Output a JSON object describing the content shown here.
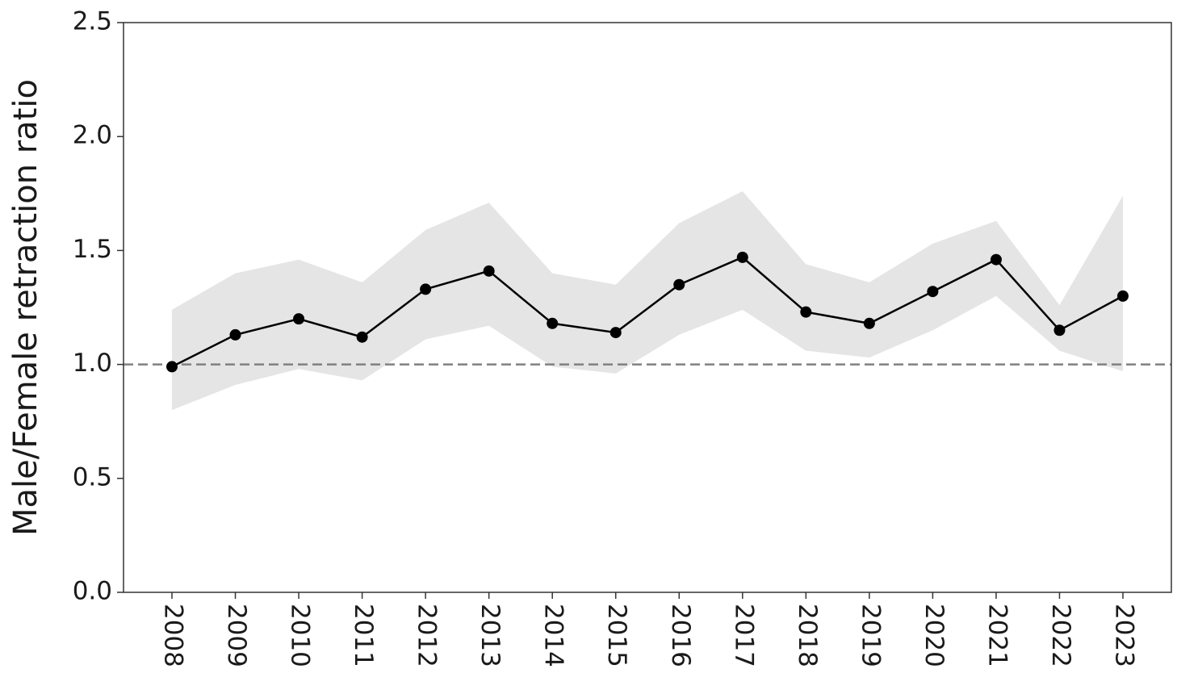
{
  "chart_data": {
    "type": "line",
    "ylabel": "Male/Female retraction ratio",
    "categories": [
      "2008",
      "2009",
      "2010",
      "2011",
      "2012",
      "2013",
      "2014",
      "2015",
      "2016",
      "2017",
      "2018",
      "2019",
      "2020",
      "2021",
      "2022",
      "2023"
    ],
    "series": [
      {
        "color": "#000000",
        "band_color": "#e5e5e5",
        "values": [
          0.99,
          1.13,
          1.2,
          1.12,
          1.33,
          1.41,
          1.18,
          1.14,
          1.35,
          1.47,
          1.23,
          1.18,
          1.32,
          1.46,
          1.15,
          1.3
        ],
        "lower": [
          0.8,
          0.91,
          0.98,
          0.93,
          1.11,
          1.17,
          0.99,
          0.96,
          1.13,
          1.24,
          1.06,
          1.03,
          1.15,
          1.3,
          1.06,
          0.97
        ],
        "upper": [
          1.24,
          1.4,
          1.46,
          1.36,
          1.59,
          1.71,
          1.4,
          1.35,
          1.62,
          1.76,
          1.44,
          1.36,
          1.53,
          1.63,
          1.26,
          1.74
        ]
      }
    ],
    "hline": {
      "value": 1,
      "color": "#808080",
      "dashed": true
    },
    "ylim": [
      0,
      2.5
    ],
    "yticks": [
      {
        "value": 0,
        "label": "0.0"
      },
      0.5,
      {
        "value": 1,
        "label": "1.0"
      },
      1.5,
      {
        "value": 2,
        "label": "2.0"
      },
      2.5
    ]
  }
}
